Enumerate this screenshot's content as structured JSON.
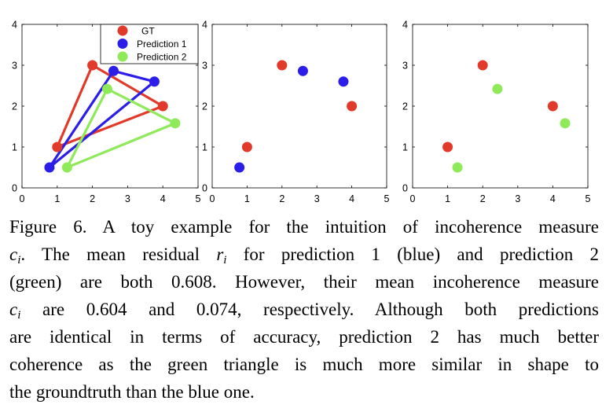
{
  "colors": {
    "gt": "#e23a2a",
    "pred1": "#2b1ee8",
    "pred2": "#8fea5a"
  },
  "chart_data": [
    {
      "type": "scatter",
      "panel": "left",
      "xlim": [
        0,
        5
      ],
      "ylim": [
        0,
        4
      ],
      "xticks": [
        "0",
        "1",
        "2",
        "3",
        "4",
        "5"
      ],
      "yticks": [
        "0",
        "1",
        "2",
        "3",
        "4"
      ],
      "connected_as_triangles": true,
      "legend": {
        "placement": "top-right",
        "entries": [
          "GT",
          "Prediction 1",
          "Prediction 2"
        ]
      },
      "series": [
        {
          "name": "GT",
          "color": "#e23a2a",
          "points": [
            [
              1,
              1
            ],
            [
              2,
              3
            ],
            [
              4,
              2
            ]
          ]
        },
        {
          "name": "Prediction 1",
          "color": "#2b1ee8",
          "points": [
            [
              0.78,
              0.5
            ],
            [
              2.6,
              2.86
            ],
            [
              3.76,
              2.6
            ]
          ]
        },
        {
          "name": "Prediction 2",
          "color": "#8fea5a",
          "points": [
            [
              1.28,
              0.5
            ],
            [
              2.42,
              2.42
            ],
            [
              4.35,
              1.58
            ]
          ]
        }
      ]
    },
    {
      "type": "scatter",
      "panel": "middle",
      "xlim": [
        0,
        5
      ],
      "ylim": [
        0,
        4
      ],
      "xticks": [
        "0",
        "1",
        "2",
        "3",
        "4",
        "5"
      ],
      "yticks": [
        "0",
        "1",
        "2",
        "3",
        "4"
      ],
      "connected_as_triangles": false,
      "series": [
        {
          "name": "GT",
          "color": "#e23a2a",
          "points": [
            [
              1,
              1
            ],
            [
              2,
              3
            ],
            [
              4,
              2
            ]
          ]
        },
        {
          "name": "Prediction 1",
          "color": "#2b1ee8",
          "points": [
            [
              0.78,
              0.5
            ],
            [
              2.6,
              2.86
            ],
            [
              3.76,
              2.6
            ]
          ]
        }
      ]
    },
    {
      "type": "scatter",
      "panel": "right",
      "xlim": [
        0,
        5
      ],
      "ylim": [
        0,
        4
      ],
      "xticks": [
        "0",
        "1",
        "2",
        "3",
        "4",
        "5"
      ],
      "yticks": [
        "0",
        "1",
        "2",
        "3",
        "4"
      ],
      "connected_as_triangles": false,
      "series": [
        {
          "name": "GT",
          "color": "#e23a2a",
          "points": [
            [
              1,
              1
            ],
            [
              2,
              3
            ],
            [
              4,
              2
            ]
          ]
        },
        {
          "name": "Prediction 2",
          "color": "#8fea5a",
          "points": [
            [
              1.28,
              0.5
            ],
            [
              2.42,
              2.42
            ],
            [
              4.35,
              1.58
            ]
          ]
        }
      ]
    }
  ],
  "caption": {
    "lines": [
      [
        {
          "t": "Figure 6. A toy example for the intuition of incoherence measure"
        }
      ],
      [
        {
          "t": "c",
          "m": "it"
        },
        {
          "t": "i",
          "m": "sub"
        },
        {
          "t": ".  The mean residual "
        },
        {
          "t": "r",
          "m": "it"
        },
        {
          "t": "i",
          "m": "sub"
        },
        {
          "t": " for prediction 1 (blue) and prediction 2"
        }
      ],
      [
        {
          "t": "(green) are both 0.608. However, their mean incoherence measure"
        }
      ],
      [
        {
          "t": "c",
          "m": "it"
        },
        {
          "t": "i",
          "m": "sub"
        },
        {
          "t": " are 0.604 and 0.074, respectively.  Although both predictions"
        }
      ],
      [
        {
          "t": "are identical in terms of accuracy, prediction 2 has much better"
        }
      ],
      [
        {
          "t": "coherence as the green triangle is much more similar in shape to"
        }
      ],
      [
        {
          "t": "the groundtruth than the blue one."
        }
      ]
    ]
  }
}
